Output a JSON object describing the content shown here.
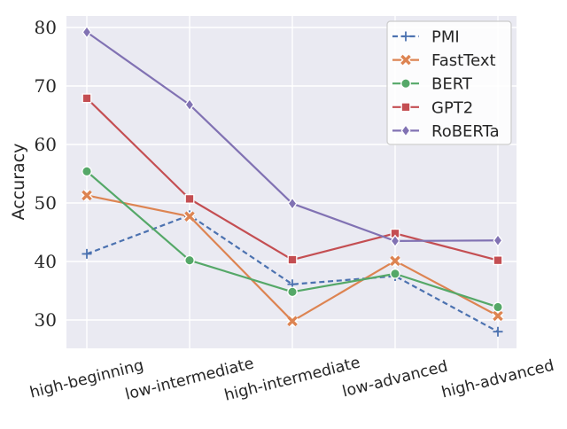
{
  "chart_data": {
    "type": "line",
    "title": "",
    "xlabel": "",
    "ylabel": "Accuracy",
    "categories": [
      "high-beginning",
      "low-intermediate",
      "high-intermediate",
      "low-advanced",
      "high-advanced"
    ],
    "series": [
      {
        "name": "PMI",
        "color": "#4c72b0",
        "marker": "plus",
        "line": "dashed",
        "values": [
          41.3,
          47.9,
          36.1,
          37.5,
          28.0
        ]
      },
      {
        "name": "FastText",
        "color": "#dd8452",
        "marker": "x",
        "line": "solid",
        "values": [
          51.3,
          47.7,
          29.8,
          40.1,
          30.7
        ]
      },
      {
        "name": "BERT",
        "color": "#55a868",
        "marker": "circle",
        "line": "solid",
        "values": [
          55.4,
          40.2,
          34.8,
          37.9,
          32.2
        ]
      },
      {
        "name": "GPT2",
        "color": "#c44e52",
        "marker": "square",
        "line": "solid",
        "values": [
          67.9,
          50.7,
          40.3,
          44.8,
          40.2
        ]
      },
      {
        "name": "RoBERTa",
        "color": "#8172b3",
        "marker": "diamond",
        "line": "solid",
        "values": [
          79.2,
          66.8,
          49.9,
          43.5,
          43.6
        ]
      }
    ],
    "yticks": [
      30,
      40,
      50,
      60,
      70,
      80
    ],
    "ylim": [
      25.2,
      82.0
    ],
    "grid": true,
    "legend_position": "upper right",
    "colors": {
      "plot_background": "#eaeaf2",
      "grid_line": "#ffffff",
      "text": "#262626",
      "legend_border": "#cccccc",
      "legend_background": "#ffffff"
    }
  }
}
